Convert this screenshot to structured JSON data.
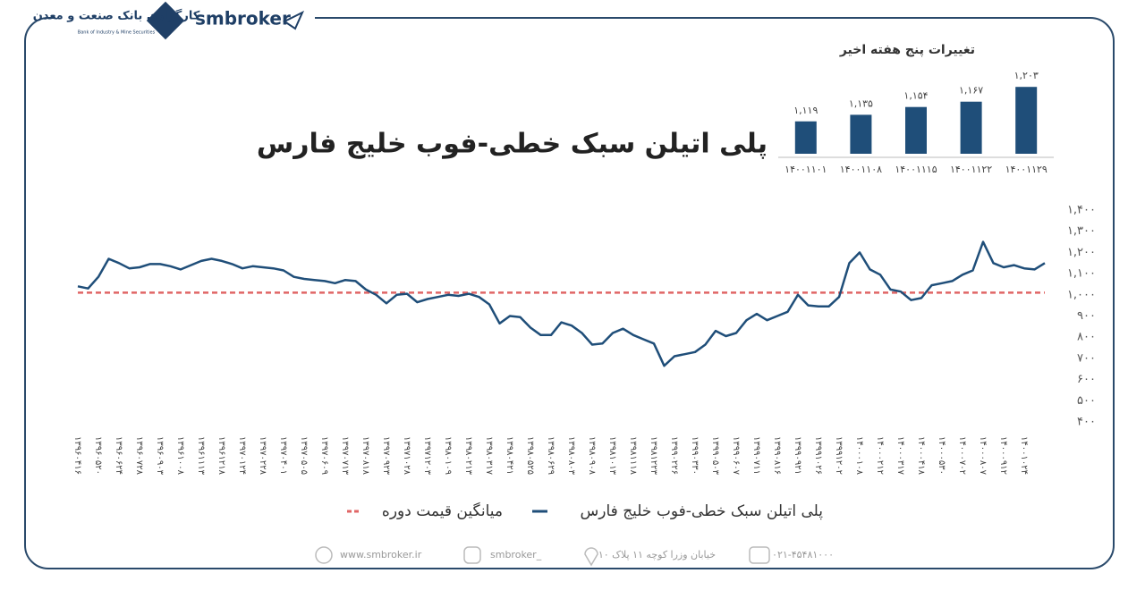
{
  "header": {
    "brand": "smbroker",
    "bank_name": "کارگزاری بانک صنعت و معدن",
    "bank_name_en": "Bank of Industry & Mine Securities"
  },
  "chart_data": [
    {
      "type": "line",
      "title": "پلی اتیلن سبک خطی-فوب خلیج فارس",
      "categories": [
        "۱۳۹۶۰۴۱۶",
        null,
        "۱۳۹۶۰۵۲۰",
        null,
        "۱۳۹۶۰۶۲۴",
        null,
        "۱۳۹۶۰۷۲۸",
        null,
        "۱۳۹۶۰۹۰۳",
        null,
        "۱۳۹۶۱۰۰۸",
        null,
        "۱۳۹۶۱۱۱۳",
        null,
        "۱۳۹۶۱۲۱۸",
        null,
        "۱۳۹۷۰۱۲۴",
        null,
        "۱۳۹۷۰۲۲۸",
        null,
        "۱۳۹۷۰۴۰۱",
        null,
        "۱۳۹۷۰۵۰۵",
        null,
        "۱۳۹۷۰۶۰۹",
        null,
        "۱۳۹۷۰۷۱۳",
        null,
        "۱۳۹۷۰۸۱۸",
        null,
        "۱۳۹۷۰۹۲۳",
        null,
        "۱۳۹۷۱۰۲۸",
        null,
        "۱۳۹۷۱۲۰۳",
        null,
        "۱۳۹۸۰۱۰۹",
        null,
        "۱۳۹۸۰۲۱۳",
        null,
        "۱۳۹۸۰۳۱۷",
        null,
        "۱۳۹۸۰۴۲۱",
        null,
        "۱۳۹۸۰۵۲۵",
        null,
        "۱۳۹۸۰۶۲۹",
        null,
        "۱۳۹۸۰۸۰۳",
        null,
        "۱۳۹۸۰۹۰۸",
        null,
        "۱۳۹۸۱۰۱۳",
        null,
        "۱۳۹۸۱۱۱۸",
        null,
        "۱۳۹۸۱۲۲۳",
        null,
        "۱۳۹۹۰۲۲۶",
        null,
        "۱۳۹۹۰۳۳۰",
        null,
        "۱۳۹۹۰۵۰۳",
        null,
        "۱۳۹۹۰۶۰۷",
        null,
        "۱۳۹۹۰۷۱۱",
        null,
        "۱۳۹۹۰۸۱۶",
        null,
        "۱۳۹۹۰۹۲۱",
        null,
        "۱۳۹۹۱۰۲۶",
        null,
        "۱۳۹۹۱۲۰۲",
        null,
        "۱۴۰۰۰۱۰۸",
        null,
        "۱۴۰۰۰۲۱۲",
        null,
        "۱۴۰۰۰۳۱۷",
        null,
        "۱۴۰۰۰۴۱۸",
        null,
        "۱۴۰۰۰۵۳۰",
        null,
        "۱۴۰۰۰۷۰۲",
        null,
        "۱۴۰۰۰۸۰۷",
        null,
        "۱۴۰۰۰۹۱۲",
        null,
        "۱۴۰۰۱۰۲۴",
        null,
        null
      ],
      "series": [
        {
          "name": "پلی اتیلن سبک خطی-فوب خلیج فارس",
          "color": "#1f4e79",
          "values": [
            1040,
            1030,
            1085,
            1170,
            1150,
            1125,
            1130,
            1145,
            1145,
            1135,
            1120,
            1140,
            1160,
            1170,
            1160,
            1145,
            1125,
            1135,
            1130,
            1125,
            1115,
            1085,
            1075,
            1070,
            1065,
            1055,
            1070,
            1065,
            1025,
            1000,
            960,
            1000,
            1005,
            965,
            980,
            990,
            1000,
            995,
            1005,
            990,
            955,
            865,
            900,
            895,
            845,
            810,
            810,
            870,
            855,
            820,
            765,
            770,
            820,
            840,
            810,
            790,
            770,
            665,
            710,
            720,
            730,
            765,
            830,
            805,
            820,
            880,
            910,
            880,
            900,
            920,
            1000,
            950,
            945,
            945,
            990,
            1150,
            1200,
            1120,
            1095,
            1025,
            1015,
            975,
            985,
            1045,
            1055,
            1065,
            1095,
            1115,
            1250,
            1150,
            1130,
            1140,
            1125,
            1120,
            1150
          ]
        }
      ],
      "reference_line": {
        "name": "میانگین قیمت دوره",
        "value": 1010,
        "color": "#e06666"
      },
      "ylim": [
        400,
        1400
      ],
      "yticks": [
        {
          "value": 400,
          "label": "۴۰۰"
        },
        {
          "value": 500,
          "label": "۵۰۰"
        },
        {
          "value": 600,
          "label": "۶۰۰"
        },
        {
          "value": 700,
          "label": "۷۰۰"
        },
        {
          "value": 800,
          "label": "۸۰۰"
        },
        {
          "value": 900,
          "label": "۹۰۰"
        },
        {
          "value": 1000,
          "label": "۱,۰۰۰"
        },
        {
          "value": 1100,
          "label": "۱,۱۰۰"
        },
        {
          "value": 1200,
          "label": "۱,۲۰۰"
        },
        {
          "value": 1300,
          "label": "۱,۳۰۰"
        },
        {
          "value": 1400,
          "label": "۱,۴۰۰"
        }
      ]
    },
    {
      "type": "bar",
      "title": "تغییرات پنج هفته اخیر",
      "color": "#1f4e79",
      "categories": [
        "۱۴۰۰۱۱۰۱",
        "۱۴۰۰۱۱۰۸",
        "۱۴۰۰۱۱۱۵",
        "۱۴۰۰۱۱۲۲",
        "۱۴۰۰۱۱۲۹"
      ],
      "values": [
        1119,
        1135,
        1154,
        1167,
        1203
      ],
      "value_labels": [
        "۱,۱۱۹",
        "۱,۱۳۵",
        "۱,۱۵۴",
        "۱,۱۶۷",
        "۱,۲۰۳"
      ],
      "ylim": [
        1040,
        1210
      ]
    }
  ],
  "footer": {
    "website": "www.smbroker.ir",
    "instagram": "smbroker_",
    "address": "خیابان وزرا کوچه ۱۱ پلاک ۱۰",
    "phone": "۰۲۱-۴۵۴۸۱۰۰۰"
  }
}
